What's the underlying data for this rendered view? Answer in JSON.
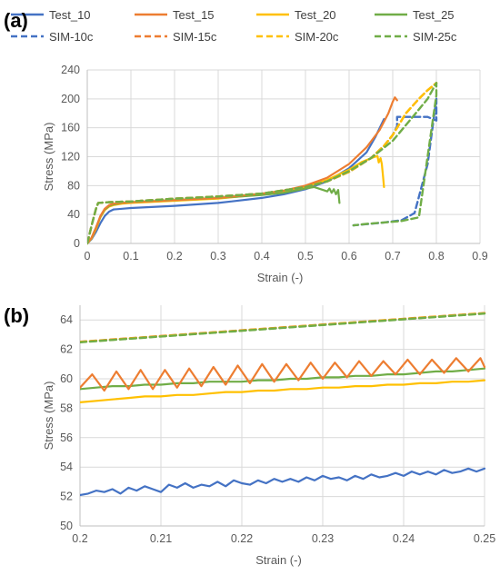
{
  "colors": {
    "test_10": "#4472C4",
    "test_15": "#ED7D31",
    "test_20": "#FFC000",
    "test_25": "#70AD47",
    "grid": "#D9D9D9",
    "axis": "#BFBFBF",
    "text": "#595959"
  },
  "legend": [
    {
      "name": "Test_10",
      "color": "#4472C4",
      "dashed": false
    },
    {
      "name": "Test_15",
      "color": "#ED7D31",
      "dashed": false
    },
    {
      "name": "Test_20",
      "color": "#FFC000",
      "dashed": false
    },
    {
      "name": "Test_25",
      "color": "#70AD47",
      "dashed": false
    },
    {
      "name": "SIM-10c",
      "color": "#4472C4",
      "dashed": true
    },
    {
      "name": "SIM-15c",
      "color": "#ED7D31",
      "dashed": true
    },
    {
      "name": "SIM-20c",
      "color": "#FFC000",
      "dashed": true
    },
    {
      "name": "SIM-25c",
      "color": "#70AD47",
      "dashed": true
    }
  ],
  "chart_data": [
    {
      "panel_label": "(a)",
      "type": "line",
      "xlabel": "Strain (-)",
      "ylabel": "Stress (MPa)",
      "xlim": [
        0,
        0.9
      ],
      "ylim": [
        0,
        240
      ],
      "xticks": [
        "0",
        "0.1",
        "0.2",
        "0.3",
        "0.4",
        "0.5",
        "0.6",
        "0.7",
        "0.8",
        "0.9"
      ],
      "yticks": [
        "0",
        "40",
        "80",
        "120",
        "160",
        "200",
        "240"
      ],
      "grid": true,
      "series": [
        {
          "name": "Test_10",
          "dashed": false,
          "x": [
            0,
            0.01,
            0.02,
            0.03,
            0.04,
            0.05,
            0.06,
            0.08,
            0.1,
            0.2,
            0.3,
            0.4,
            0.45,
            0.5,
            0.55,
            0.6,
            0.64,
            0.66,
            0.68
          ],
          "y": [
            0,
            6,
            16,
            28,
            38,
            44,
            47,
            48,
            49,
            52,
            56,
            63,
            68,
            75,
            86,
            104,
            126,
            147,
            172
          ]
        },
        {
          "name": "Test_15",
          "dashed": false,
          "x": [
            0,
            0.01,
            0.02,
            0.03,
            0.04,
            0.05,
            0.06,
            0.08,
            0.1,
            0.2,
            0.3,
            0.4,
            0.45,
            0.5,
            0.55,
            0.6,
            0.64,
            0.67,
            0.69,
            0.7,
            0.705,
            0.71
          ],
          "y": [
            0,
            8,
            22,
            38,
            48,
            53,
            55,
            56,
            57,
            60,
            63,
            69,
            73,
            80,
            91,
            110,
            133,
            157,
            180,
            196,
            202,
            198
          ]
        },
        {
          "name": "Test_20",
          "dashed": false,
          "x": [
            0,
            0.01,
            0.02,
            0.03,
            0.04,
            0.05,
            0.06,
            0.08,
            0.1,
            0.2,
            0.3,
            0.4,
            0.45,
            0.5,
            0.55,
            0.6,
            0.63,
            0.655,
            0.665,
            0.668,
            0.672,
            0.675,
            0.678,
            0.68
          ],
          "y": [
            0,
            7,
            20,
            36,
            46,
            51,
            53,
            55,
            56,
            59,
            62,
            68,
            72,
            78,
            88,
            102,
            113,
            119,
            121,
            112,
            118,
            110,
            92,
            78
          ]
        },
        {
          "name": "Test_25",
          "dashed": false,
          "x": [
            0,
            0.01,
            0.02,
            0.03,
            0.04,
            0.05,
            0.06,
            0.08,
            0.1,
            0.2,
            0.3,
            0.4,
            0.45,
            0.5,
            0.52,
            0.54,
            0.55,
            0.555,
            0.56,
            0.565,
            0.57,
            0.575,
            0.578
          ],
          "y": [
            0,
            8,
            22,
            37,
            47,
            52,
            54,
            56,
            57,
            60,
            63,
            67,
            70,
            76,
            78,
            74,
            72,
            76,
            70,
            75,
            68,
            74,
            56
          ]
        },
        {
          "name": "SIM-10c",
          "dashed": true,
          "x": [
            0,
            0.01,
            0.02,
            0.025,
            0.05,
            0.1,
            0.2,
            0.3,
            0.4,
            0.5,
            0.55,
            0.6,
            0.65,
            0.68,
            0.7,
            0.71,
            0.71,
            0.74,
            0.76,
            0.78,
            0.8,
            0.8,
            0.78,
            0.75,
            0.72,
            0.68,
            0.61
          ],
          "y": [
            0,
            25,
            48,
            56,
            57,
            58,
            62,
            65,
            69,
            78,
            86,
            99,
            118,
            135,
            150,
            162,
            175,
            175,
            175,
            175,
            170,
            200,
            110,
            42,
            32,
            29,
            25
          ]
        },
        {
          "name": "SIM-15c",
          "dashed": true,
          "x": [
            0,
            0.01,
            0.02,
            0.025,
            0.05,
            0.1,
            0.2,
            0.3,
            0.4,
            0.5,
            0.55,
            0.6,
            0.65,
            0.68,
            0.7,
            0.71,
            0.73,
            0.76,
            0.78,
            0.8
          ],
          "y": [
            0,
            25,
            48,
            56,
            57,
            58,
            62,
            65,
            69,
            78,
            86,
            99,
            118,
            135,
            150,
            160,
            180,
            200,
            212,
            222
          ]
        },
        {
          "name": "SIM-20c",
          "dashed": true,
          "x": [
            0,
            0.01,
            0.02,
            0.025,
            0.05,
            0.1,
            0.2,
            0.3,
            0.4,
            0.5,
            0.55,
            0.6,
            0.65,
            0.68,
            0.7,
            0.71,
            0.73,
            0.76,
            0.78,
            0.8
          ],
          "y": [
            0,
            25,
            48,
            56,
            57,
            58,
            62,
            65,
            69,
            78,
            86,
            99,
            118,
            135,
            150,
            160,
            180,
            200,
            212,
            222
          ]
        },
        {
          "name": "SIM-25c",
          "dashed": true,
          "x": [
            0,
            0.01,
            0.02,
            0.025,
            0.05,
            0.1,
            0.2,
            0.3,
            0.4,
            0.5,
            0.55,
            0.6,
            0.65,
            0.7,
            0.75,
            0.78,
            0.8,
            0.8,
            0.76,
            0.72,
            0.68,
            0.64,
            0.61
          ],
          "y": [
            0,
            25,
            48,
            56,
            57,
            58,
            62,
            65,
            69,
            78,
            86,
            100,
            118,
            142,
            178,
            200,
            222,
            205,
            36,
            31,
            29,
            27,
            25
          ]
        }
      ]
    },
    {
      "panel_label": "(b)",
      "type": "line",
      "xlabel": "Strain (-)",
      "ylabel": "Stress (MPa)",
      "xlim": [
        0.2,
        0.25
      ],
      "ylim": [
        50,
        65
      ],
      "xticks": [
        "0.2",
        "0.21",
        "0.22",
        "0.23",
        "0.24",
        "0.25"
      ],
      "yticks": [
        "50",
        "52",
        "54",
        "56",
        "58",
        "60",
        "62",
        "64"
      ],
      "grid": true,
      "series": [
        {
          "name": "Test_10",
          "dashed": false,
          "x": [
            0.2,
            0.201,
            0.202,
            0.203,
            0.204,
            0.205,
            0.206,
            0.207,
            0.208,
            0.209,
            0.21,
            0.211,
            0.212,
            0.213,
            0.214,
            0.215,
            0.216,
            0.217,
            0.218,
            0.219,
            0.22,
            0.221,
            0.222,
            0.223,
            0.224,
            0.225,
            0.226,
            0.227,
            0.228,
            0.229,
            0.23,
            0.231,
            0.232,
            0.233,
            0.234,
            0.235,
            0.236,
            0.237,
            0.238,
            0.239,
            0.24,
            0.241,
            0.242,
            0.243,
            0.244,
            0.245,
            0.246,
            0.247,
            0.248,
            0.249,
            0.25
          ],
          "y": [
            52.1,
            52.2,
            52.4,
            52.3,
            52.5,
            52.2,
            52.6,
            52.4,
            52.7,
            52.5,
            52.3,
            52.8,
            52.6,
            52.9,
            52.6,
            52.8,
            52.7,
            53.0,
            52.7,
            53.1,
            52.9,
            52.8,
            53.1,
            52.9,
            53.2,
            53.0,
            53.2,
            53.0,
            53.3,
            53.1,
            53.4,
            53.2,
            53.3,
            53.1,
            53.4,
            53.2,
            53.5,
            53.3,
            53.4,
            53.6,
            53.4,
            53.7,
            53.5,
            53.7,
            53.5,
            53.8,
            53.6,
            53.7,
            53.9,
            53.7,
            53.9
          ]
        },
        {
          "name": "Test_15",
          "dashed": false,
          "x": [
            0.2,
            0.2015,
            0.203,
            0.2045,
            0.206,
            0.2075,
            0.209,
            0.2105,
            0.212,
            0.2135,
            0.215,
            0.2165,
            0.218,
            0.2195,
            0.221,
            0.2225,
            0.224,
            0.2255,
            0.227,
            0.2285,
            0.23,
            0.2315,
            0.233,
            0.2345,
            0.236,
            0.2375,
            0.239,
            0.2405,
            0.242,
            0.2435,
            0.245,
            0.2465,
            0.248,
            0.2495,
            0.25
          ],
          "y": [
            59.4,
            60.3,
            59.2,
            60.5,
            59.3,
            60.6,
            59.3,
            60.6,
            59.4,
            60.7,
            59.5,
            60.8,
            59.6,
            60.9,
            59.7,
            61.0,
            59.8,
            61.0,
            59.9,
            61.1,
            60.0,
            61.1,
            60.1,
            61.2,
            60.2,
            61.2,
            60.3,
            61.3,
            60.3,
            61.3,
            60.4,
            61.4,
            60.5,
            61.4,
            60.8
          ]
        },
        {
          "name": "Test_20",
          "dashed": false,
          "x": [
            0.2,
            0.202,
            0.204,
            0.206,
            0.208,
            0.21,
            0.212,
            0.214,
            0.216,
            0.218,
            0.22,
            0.222,
            0.224,
            0.226,
            0.228,
            0.23,
            0.232,
            0.234,
            0.236,
            0.238,
            0.24,
            0.242,
            0.244,
            0.246,
            0.248,
            0.25
          ],
          "y": [
            58.4,
            58.5,
            58.6,
            58.7,
            58.8,
            58.8,
            58.9,
            58.9,
            59.0,
            59.1,
            59.1,
            59.2,
            59.2,
            59.3,
            59.3,
            59.4,
            59.4,
            59.5,
            59.5,
            59.6,
            59.6,
            59.7,
            59.7,
            59.8,
            59.8,
            59.9
          ]
        },
        {
          "name": "Test_25",
          "dashed": false,
          "x": [
            0.2,
            0.202,
            0.204,
            0.206,
            0.208,
            0.21,
            0.212,
            0.214,
            0.216,
            0.218,
            0.22,
            0.222,
            0.224,
            0.226,
            0.228,
            0.23,
            0.232,
            0.234,
            0.236,
            0.238,
            0.24,
            0.242,
            0.244,
            0.246,
            0.248,
            0.25
          ],
          "y": [
            59.3,
            59.4,
            59.5,
            59.5,
            59.6,
            59.6,
            59.7,
            59.7,
            59.8,
            59.8,
            59.8,
            59.9,
            59.9,
            60.0,
            60.0,
            60.1,
            60.1,
            60.2,
            60.2,
            60.3,
            60.3,
            60.4,
            60.5,
            60.5,
            60.6,
            60.7
          ]
        },
        {
          "name": "SIM-10c",
          "dashed": true,
          "x": [
            0.2,
            0.25
          ],
          "y": [
            62.5,
            64.45
          ]
        },
        {
          "name": "SIM-15c",
          "dashed": true,
          "x": [
            0.2,
            0.25
          ],
          "y": [
            62.52,
            64.47
          ]
        },
        {
          "name": "SIM-20c",
          "dashed": true,
          "x": [
            0.2,
            0.25
          ],
          "y": [
            62.5,
            64.45
          ]
        },
        {
          "name": "SIM-25c",
          "dashed": true,
          "x": [
            0.2,
            0.25
          ],
          "y": [
            62.48,
            64.43
          ]
        }
      ]
    }
  ]
}
